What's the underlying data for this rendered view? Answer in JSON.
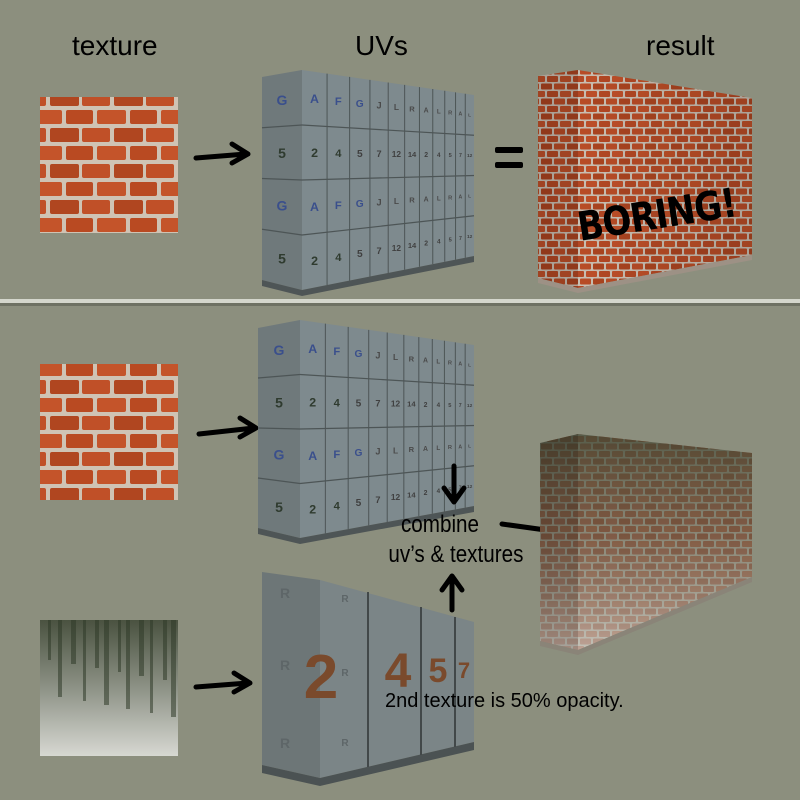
{
  "headers": {
    "texture": "texture",
    "uvs": "UVs",
    "result": "result"
  },
  "annotation": {
    "boring": "BORING!"
  },
  "combine_text": [
    "combine",
    "uv’s & textures"
  ],
  "note": "2nd texture is 50% opacity.",
  "uv_grid": {
    "rows": [
      [
        "G",
        "A",
        "F",
        "G",
        "J",
        "L",
        "R",
        "A",
        "L",
        "R",
        "A",
        "L"
      ],
      [
        "5",
        "2",
        "4",
        "5",
        "7",
        "12",
        "14",
        "2",
        "4",
        "5",
        "7",
        "12"
      ],
      [
        "G",
        "A",
        "F",
        "G",
        "J",
        "L",
        "R",
        "A",
        "L",
        "R",
        "A",
        "L"
      ],
      [
        "5",
        "2",
        "4",
        "5",
        "7",
        "12",
        "14",
        "2",
        "4",
        "5",
        "7",
        "12"
      ]
    ]
  },
  "uv_grid_2": {
    "numbers": [
      "2",
      "4",
      "5",
      "7"
    ],
    "marks": "R"
  },
  "colors": {
    "background": "#8c8f7e",
    "divider": "#d4d6cc",
    "brick": "#b94a22",
    "mortar": "#cfc3b4",
    "uv_panel": "#7e8a8e",
    "uv_letter_blue": "#3a4f8c",
    "uv_number_brown": "#5c4a2a",
    "arrow": "#000000"
  }
}
